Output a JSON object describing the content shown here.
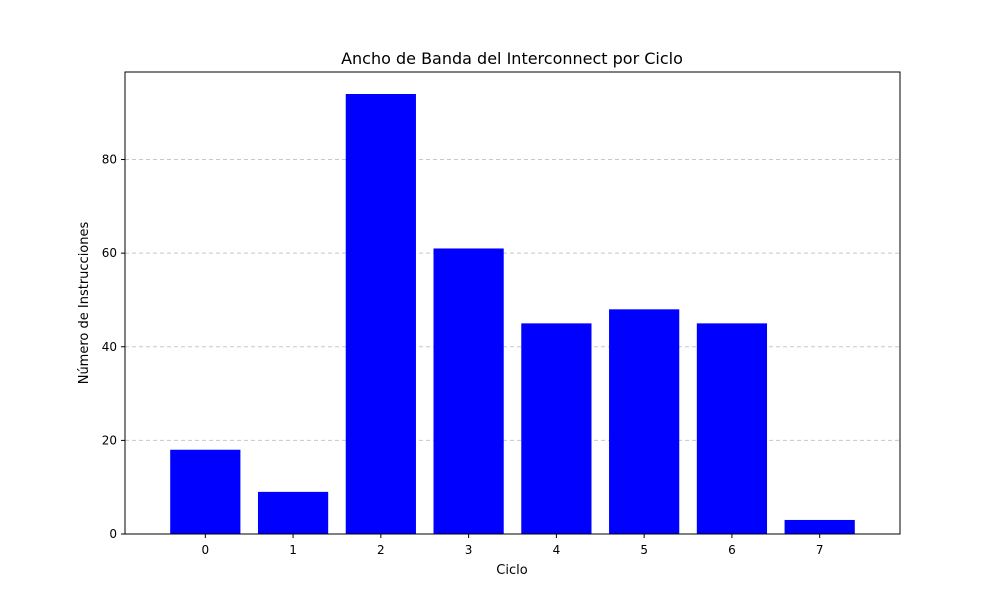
{
  "chart_data": {
    "type": "bar",
    "title": "Ancho de Banda del Interconnect por Ciclo",
    "xlabel": "Ciclo",
    "ylabel": "Número de Instrucciones",
    "categories": [
      "0",
      "1",
      "2",
      "3",
      "4",
      "5",
      "6",
      "7"
    ],
    "values": [
      18,
      9,
      94,
      61,
      45,
      48,
      45,
      3
    ],
    "ylim": [
      0,
      98.7
    ],
    "yticks": [
      0,
      20,
      40,
      60,
      80
    ],
    "grid": "y-dashed",
    "bar_color": "#0000ff",
    "grid_color": "#c8c8c8"
  }
}
